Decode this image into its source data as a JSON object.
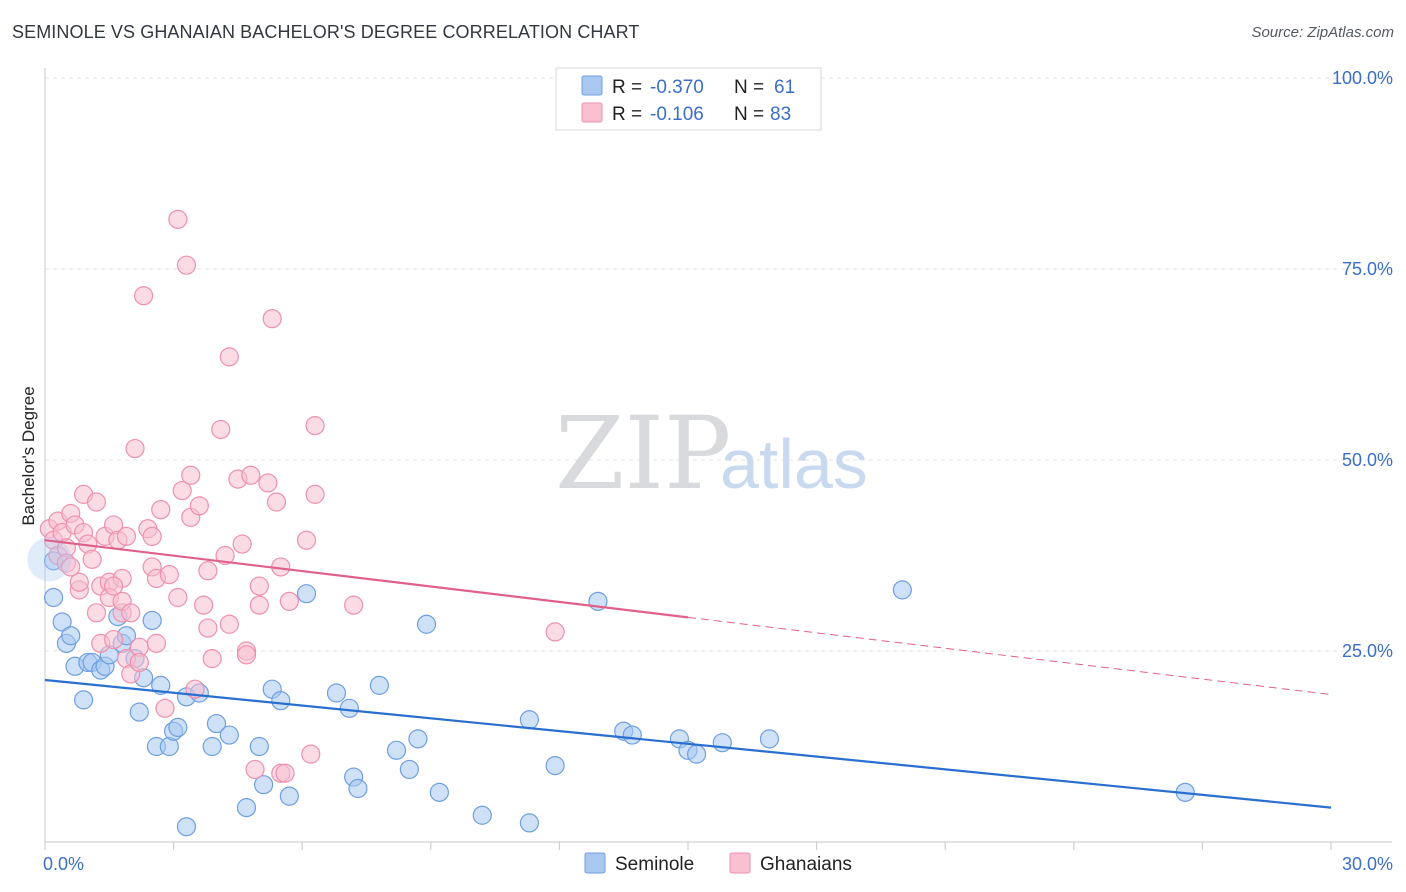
{
  "header": {
    "title": "SEMINOLE VS GHANAIAN BACHELOR'S DEGREE CORRELATION CHART",
    "source": "Source: ZipAtlas.com"
  },
  "watermark": {
    "zip": "ZIP",
    "atlas": "atlas"
  },
  "legend": {
    "rows": [
      {
        "r_label": "R =",
        "r_value": "-0.370",
        "n_label": "N =",
        "n_value": "61",
        "color": "#a8c8f0",
        "stroke": "#6f9fe0"
      },
      {
        "r_label": "R =",
        "r_value": "-0.106",
        "n_label": "N =",
        "n_value": "83",
        "color": "#f8c0d0",
        "stroke": "#ee90ae"
      }
    ]
  },
  "bottom_legend": [
    {
      "label": "Seminole",
      "color": "#a8c8f0",
      "stroke": "#6f9fe0"
    },
    {
      "label": "Ghanaians",
      "color": "#f8c0d0",
      "stroke": "#ee90ae"
    }
  ],
  "chart_data": {
    "type": "scatter",
    "title": "SEMINOLE VS GHANAIAN BACHELOR'S DEGREE CORRELATION CHART",
    "xlabel": "",
    "ylabel": "Bachelor's Degree",
    "xlim": [
      0,
      30
    ],
    "ylim": [
      0,
      100
    ],
    "x_tick_labels": [
      {
        "value": 0,
        "label": "0.0%"
      },
      {
        "value": 30,
        "label": "30.0%"
      }
    ],
    "y_tick_labels": [
      {
        "value": 25,
        "label": "25.0%"
      },
      {
        "value": 50,
        "label": "50.0%"
      },
      {
        "value": 75,
        "label": "75.0%"
      },
      {
        "value": 100,
        "label": "100.0%"
      }
    ],
    "series": [
      {
        "name": "Seminole",
        "color": "#a8c8f0",
        "stroke": "#6f9fe0",
        "line_color": "#2a6fd0",
        "trend": {
          "x0": 0,
          "y0": 21.2,
          "x1": 30,
          "y1": 4.5,
          "dash_from": 30
        },
        "points": [
          [
            0.2,
            36.8
          ],
          [
            0.2,
            32.0
          ],
          [
            0.4,
            28.8
          ],
          [
            0.5,
            26.0
          ],
          [
            0.6,
            27.0
          ],
          [
            0.7,
            23.0
          ],
          [
            0.9,
            18.6
          ],
          [
            1.0,
            23.5
          ],
          [
            1.1,
            23.5
          ],
          [
            1.3,
            22.5
          ],
          [
            1.4,
            23.0
          ],
          [
            1.5,
            24.5
          ],
          [
            1.7,
            29.5
          ],
          [
            1.8,
            26.0
          ],
          [
            1.9,
            27.0
          ],
          [
            2.1,
            24.0
          ],
          [
            2.2,
            17.0
          ],
          [
            2.3,
            21.5
          ],
          [
            2.5,
            29.0
          ],
          [
            2.6,
            12.5
          ],
          [
            2.7,
            20.5
          ],
          [
            2.9,
            12.5
          ],
          [
            3.0,
            14.5
          ],
          [
            3.1,
            15.0
          ],
          [
            3.3,
            19.0
          ],
          [
            3.6,
            19.5
          ],
          [
            3.3,
            2.0
          ],
          [
            3.9,
            12.5
          ],
          [
            4.0,
            15.5
          ],
          [
            4.3,
            14.0
          ],
          [
            4.7,
            4.5
          ],
          [
            5.0,
            12.5
          ],
          [
            5.1,
            7.5
          ],
          [
            5.3,
            20.0
          ],
          [
            5.5,
            18.5
          ],
          [
            5.7,
            6.0
          ],
          [
            6.1,
            32.5
          ],
          [
            6.8,
            19.5
          ],
          [
            7.1,
            17.5
          ],
          [
            7.2,
            8.5
          ],
          [
            7.3,
            7.0
          ],
          [
            7.8,
            20.5
          ],
          [
            8.2,
            12.0
          ],
          [
            8.5,
            9.5
          ],
          [
            8.7,
            13.5
          ],
          [
            8.9,
            28.5
          ],
          [
            9.2,
            6.5
          ],
          [
            10.2,
            3.5
          ],
          [
            11.3,
            16.0
          ],
          [
            11.3,
            2.5
          ],
          [
            11.9,
            10.0
          ],
          [
            12.9,
            31.5
          ],
          [
            13.5,
            14.5
          ],
          [
            13.7,
            14.0
          ],
          [
            14.8,
            13.5
          ],
          [
            15.0,
            12.0
          ],
          [
            15.2,
            11.5
          ],
          [
            15.8,
            13.0
          ],
          [
            16.9,
            13.5
          ],
          [
            20.0,
            33.0
          ],
          [
            26.6,
            6.5
          ]
        ]
      },
      {
        "name": "Ghanaians",
        "color": "#f8c0d0",
        "stroke": "#ee90ae",
        "line_color": "#e0608a",
        "trend": {
          "x0": 0,
          "y0": 39.5,
          "x1": 30,
          "y1": 19.3,
          "dash_from": 15
        },
        "points": [
          [
            0.1,
            41.0
          ],
          [
            0.2,
            39.5
          ],
          [
            0.3,
            42.0
          ],
          [
            0.3,
            37.5
          ],
          [
            0.4,
            40.5
          ],
          [
            0.5,
            38.5
          ],
          [
            0.5,
            36.5
          ],
          [
            0.6,
            43.0
          ],
          [
            0.7,
            41.5
          ],
          [
            0.8,
            33.0
          ],
          [
            0.8,
            34.0
          ],
          [
            0.9,
            40.5
          ],
          [
            0.9,
            45.5
          ],
          [
            1.0,
            39.0
          ],
          [
            1.1,
            37.0
          ],
          [
            1.2,
            44.5
          ],
          [
            1.3,
            33.5
          ],
          [
            1.3,
            26.0
          ],
          [
            1.4,
            40.0
          ],
          [
            1.5,
            34.0
          ],
          [
            1.5,
            32.0
          ],
          [
            1.6,
            41.5
          ],
          [
            1.6,
            26.5
          ],
          [
            1.7,
            39.5
          ],
          [
            1.8,
            34.5
          ],
          [
            1.8,
            30.0
          ],
          [
            1.8,
            31.5
          ],
          [
            1.9,
            24.0
          ],
          [
            2.0,
            22.0
          ],
          [
            2.1,
            51.5
          ],
          [
            2.2,
            25.5
          ],
          [
            2.2,
            23.5
          ],
          [
            2.3,
            71.5
          ],
          [
            2.4,
            41.0
          ],
          [
            2.5,
            36.0
          ],
          [
            2.5,
            40.0
          ],
          [
            2.6,
            34.5
          ],
          [
            2.7,
            43.5
          ],
          [
            2.8,
            17.5
          ],
          [
            2.9,
            35.0
          ],
          [
            3.1,
            32.0
          ],
          [
            3.1,
            81.5
          ],
          [
            3.2,
            46.0
          ],
          [
            3.3,
            75.5
          ],
          [
            3.4,
            48.0
          ],
          [
            3.4,
            42.5
          ],
          [
            3.5,
            20.0
          ],
          [
            3.6,
            44.0
          ],
          [
            3.7,
            31.0
          ],
          [
            3.8,
            35.5
          ],
          [
            3.9,
            24.0
          ],
          [
            4.1,
            54.0
          ],
          [
            4.2,
            37.5
          ],
          [
            4.3,
            28.5
          ],
          [
            4.3,
            63.5
          ],
          [
            4.5,
            47.5
          ],
          [
            4.6,
            39.0
          ],
          [
            4.7,
            25.0
          ],
          [
            4.8,
            48.0
          ],
          [
            4.9,
            9.5
          ],
          [
            5.0,
            31.0
          ],
          [
            5.0,
            33.5
          ],
          [
            5.2,
            47.0
          ],
          [
            5.3,
            68.5
          ],
          [
            5.4,
            44.5
          ],
          [
            5.5,
            9.0
          ],
          [
            5.6,
            9.0
          ],
          [
            5.7,
            31.5
          ],
          [
            6.1,
            39.5
          ],
          [
            6.2,
            11.5
          ],
          [
            6.3,
            54.5
          ],
          [
            6.3,
            45.5
          ],
          [
            7.2,
            31.0
          ],
          [
            11.9,
            27.5
          ],
          [
            1.9,
            40.0
          ],
          [
            2.6,
            26.0
          ],
          [
            1.2,
            30.0
          ],
          [
            0.6,
            36.0
          ],
          [
            4.7,
            24.5
          ],
          [
            3.8,
            28.0
          ],
          [
            2.0,
            30.0
          ],
          [
            1.6,
            33.5
          ],
          [
            5.5,
            36.0
          ]
        ]
      }
    ]
  }
}
